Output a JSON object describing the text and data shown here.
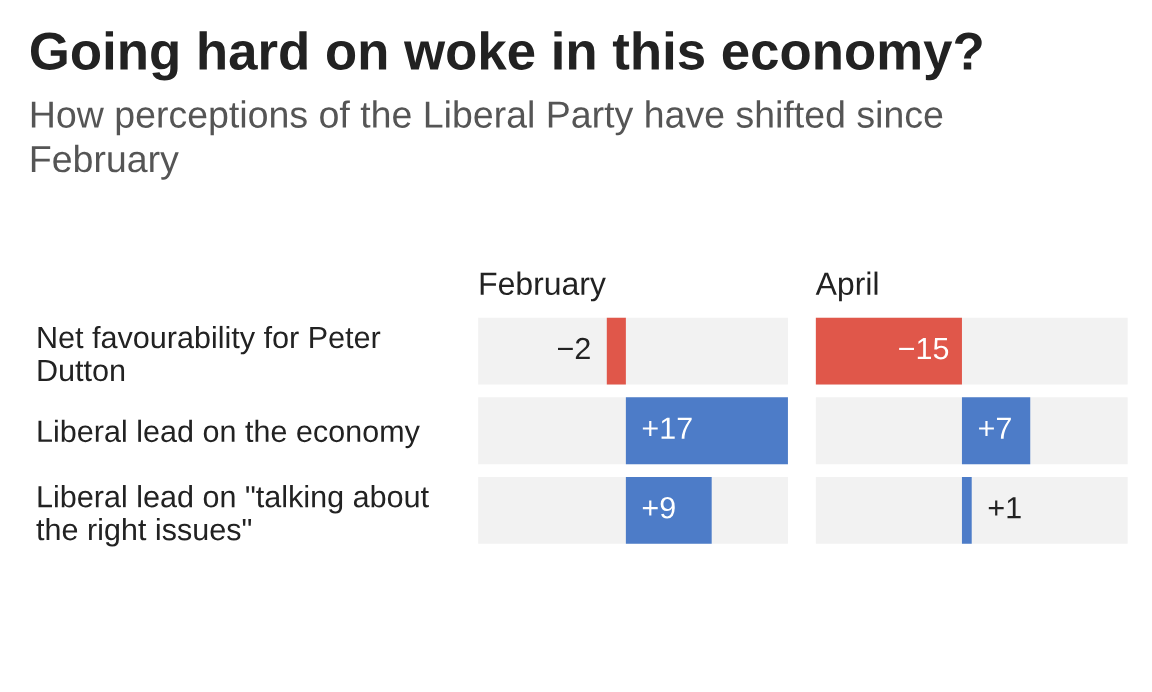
{
  "chart_data": [
    {
      "type": "other",
      "title": "Going hard on woke in this economy?",
      "subtitle": "How perceptions of the Liberal Party have shifted since February"
    },
    {
      "type": "bar",
      "orientation": "horizontal",
      "title": "February",
      "categories": [
        "Net favourability for Peter Dutton",
        "Liberal lead on the economy",
        "Liberal lead on \"talking about the right issues\""
      ],
      "values": [
        -2,
        17,
        9
      ],
      "colors": [
        "#e0574a",
        "#4d7cc8",
        "#4d7cc8"
      ],
      "value_labels": [
        "−2",
        "+17",
        "+9"
      ],
      "xlim": [
        -15.5,
        17
      ],
      "tick_labels": "y"
    },
    {
      "type": "bar",
      "orientation": "horizontal",
      "title": "April",
      "categories": [
        null,
        null,
        null
      ],
      "values": [
        -15,
        7,
        1
      ],
      "colors": [
        "#e0574a",
        "#4d7cc8",
        "#4d7cc8"
      ],
      "value_labels": [
        "−15",
        "+7",
        "+1"
      ],
      "xlim": [
        -15,
        17
      ],
      "tick_labels": false
    }
  ]
}
